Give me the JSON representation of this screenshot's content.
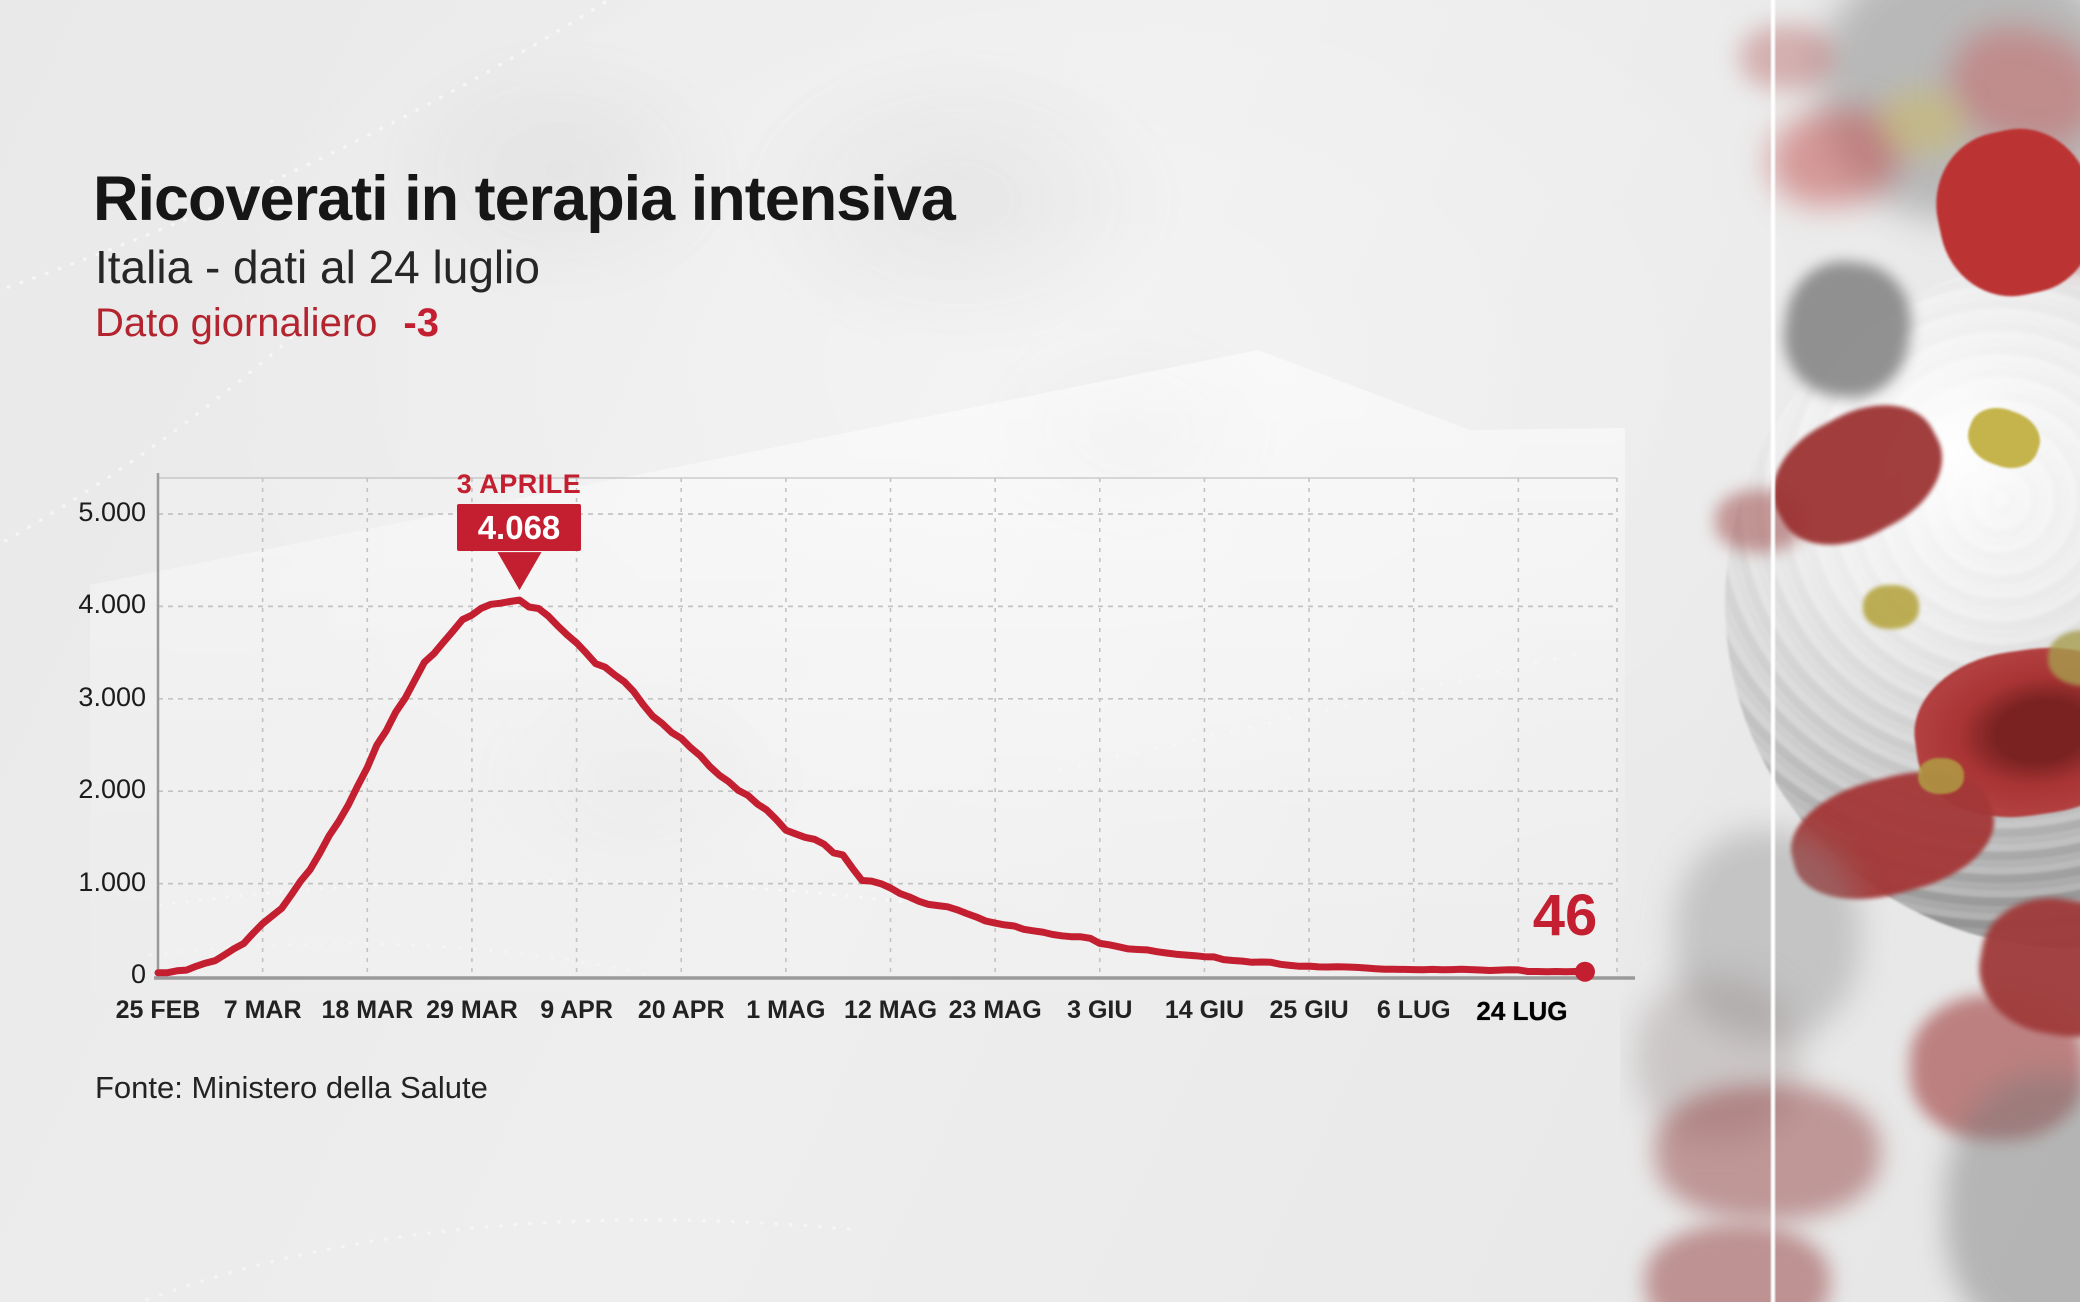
{
  "header": {
    "title": "Ricoverati in terapia intensiva",
    "subtitle": "Italia - dati al 24 luglio",
    "daily_label": "Dato giornaliero",
    "daily_value": "-3"
  },
  "annotation": {
    "date_label": "3 APRILE",
    "value_label": "4.068"
  },
  "end_label": "46",
  "source": {
    "label": "Fonte: Ministero della Salute"
  },
  "colors": {
    "accent_red": "#c31f30",
    "text_dark": "#1d1d1d",
    "grid": "#c3c3c3",
    "axis": "#9a9a9a"
  },
  "chart_data": {
    "type": "line",
    "title": "Ricoverati in terapia intensiva",
    "ylabel": "",
    "xlabel": "",
    "ylim": [
      0,
      5000
    ],
    "grid": "dashed",
    "y_ticks": [
      0,
      1000,
      2000,
      3000,
      4000,
      5000
    ],
    "y_tick_labels": [
      "0",
      "1.000",
      "2.000",
      "3.000",
      "4.000",
      "5.000"
    ],
    "x_tick_labels": [
      "25 FEB",
      "7 MAR",
      "18 MAR",
      "29 MAR",
      "9 APR",
      "20 APR",
      "1 MAG",
      "12 MAG",
      "23 MAG",
      "3 GIU",
      "14 GIU",
      "25 GIU",
      "6 LUG",
      "24 LUG"
    ],
    "x_tick_days": [
      0,
      11,
      22,
      33,
      44,
      55,
      66,
      77,
      88,
      99,
      110,
      121,
      132,
      150
    ],
    "peak": {
      "day_index": 38,
      "date_label": "3 APRILE",
      "value": 4068
    },
    "last": {
      "date_label": "24 LUG",
      "value": 46
    },
    "values": [
      35,
      36,
      56,
      64,
      105,
      140,
      166,
      229,
      295,
      351,
      462,
      567,
      650,
      733,
      877,
      1028,
      1153,
      1328,
      1518,
      1672,
      1851,
      2060,
      2257,
      2498,
      2655,
      2857,
      3009,
      3204,
      3396,
      3489,
      3612,
      3732,
      3856,
      3906,
      3981,
      4023,
      4035,
      4053,
      4068,
      3994,
      3977,
      3898,
      3792,
      3693,
      3605,
      3497,
      3381,
      3343,
      3260,
      3186,
      3079,
      2936,
      2812,
      2733,
      2635,
      2573,
      2471,
      2384,
      2267,
      2173,
      2102,
      2009,
      1956,
      1863,
      1795,
      1694,
      1578,
      1539,
      1501,
      1479,
      1427,
      1333,
      1311,
      1168,
      1034,
      1027,
      999,
      952,
      893,
      855,
      808,
      775,
      762,
      749,
      716,
      676,
      640,
      595,
      572,
      553,
      541,
      505,
      489,
      475,
      450,
      435,
      425,
      424,
      408,
      353,
      338,
      316,
      293,
      287,
      283,
      263,
      249,
      236,
      227,
      220,
      209,
      207,
      177,
      168,
      161,
      148,
      152,
      148,
      127,
      115,
      105,
      107,
      98,
      97,
      100,
      97,
      93,
      87,
      79,
      74,
      72,
      71,
      69,
      67,
      71,
      68,
      69,
      72,
      69,
      65,
      59,
      64,
      68,
      66,
      49,
      49,
      47,
      49,
      46,
      49,
      46
    ]
  }
}
